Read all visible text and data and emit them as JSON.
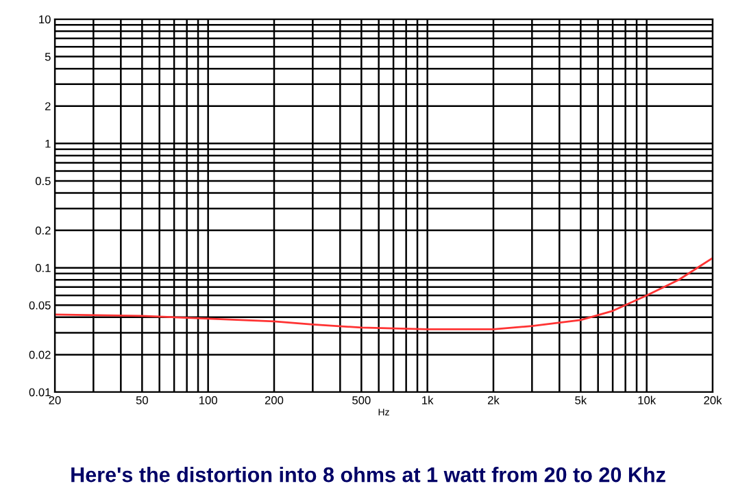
{
  "chart_data": {
    "type": "line",
    "xlabel": "Hz",
    "annotations": [
      "Here's the distortion into 8 ohms at 1 watt from 20 to 20 Khz"
    ],
    "series": [
      {
        "color": "#ff3333",
        "x": [
          20,
          50,
          100,
          200,
          300,
          500,
          1000,
          2000,
          3000,
          5000,
          7000,
          10000,
          14000,
          20000
        ],
        "values": [
          0.042,
          0.041,
          0.039,
          0.037,
          0.035,
          0.033,
          0.032,
          0.032,
          0.034,
          0.038,
          0.045,
          0.06,
          0.08,
          0.12
        ]
      }
    ],
    "log": "xy",
    "xlim": [
      20,
      20000
    ],
    "ylim": [
      0.01,
      10
    ],
    "xticks": [
      20,
      50,
      100,
      200,
      500,
      {
        "value": 1000,
        "label": "1k"
      },
      {
        "value": 2000,
        "label": "2k"
      },
      {
        "value": 5000,
        "label": "5k"
      },
      {
        "value": 10000,
        "label": "10k"
      },
      {
        "value": 20000,
        "label": "20k"
      }
    ],
    "yticks": [
      0.01,
      0.02,
      0.05,
      0.1,
      0.2,
      0.5,
      1,
      2,
      5,
      10
    ],
    "grid": true,
    "marker": "none",
    "line_style": "solid"
  }
}
